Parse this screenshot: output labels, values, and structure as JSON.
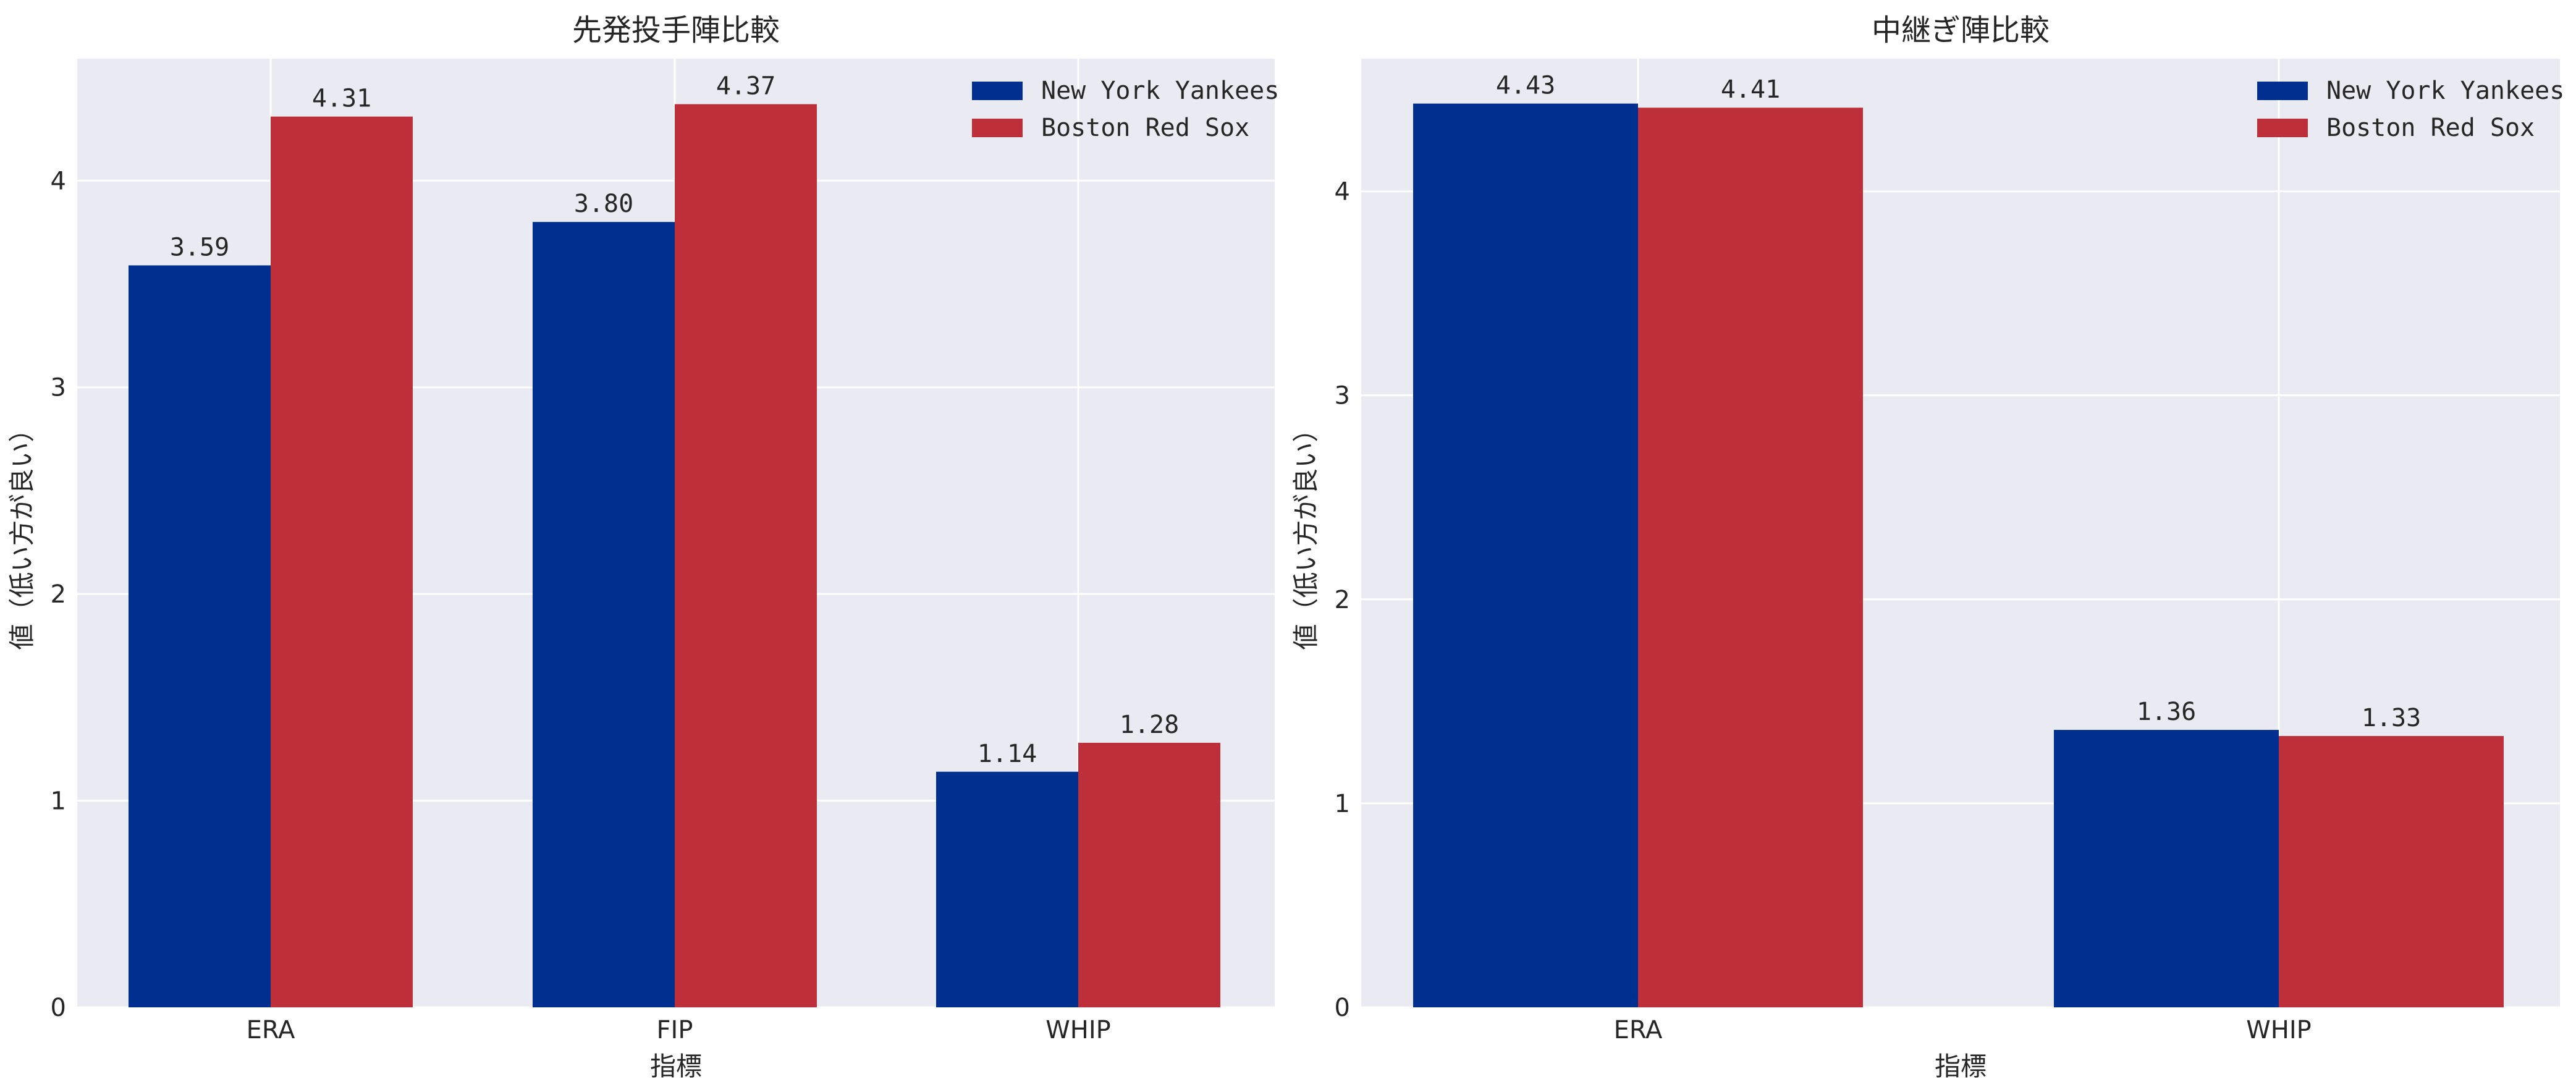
{
  "chart_data": [
    {
      "type": "bar",
      "title": "先発投手陣比較",
      "xlabel": "指標",
      "ylabel": "値（低い方が良い）",
      "categories": [
        "ERA",
        "FIP",
        "WHIP"
      ],
      "series": [
        {
          "name": "New York Yankees",
          "color": "#00308f",
          "values": [
            3.59,
            3.8,
            1.14
          ],
          "labels": [
            "3.59",
            "3.80",
            "1.14"
          ]
        },
        {
          "name": "Boston Red Sox",
          "color": "#bd3039",
          "values": [
            4.31,
            4.37,
            1.28
          ],
          "labels": [
            "4.31",
            "4.37",
            "1.28"
          ]
        }
      ],
      "ylim": [
        0,
        4.59
      ],
      "yticks": [
        0,
        1,
        2,
        3,
        4
      ],
      "grid": true,
      "legend": "top-right"
    },
    {
      "type": "bar",
      "title": "中継ぎ陣比較",
      "xlabel": "指標",
      "ylabel": "値（低い方が良い）",
      "categories": [
        "ERA",
        "WHIP"
      ],
      "series": [
        {
          "name": "New York Yankees",
          "color": "#00308f",
          "values": [
            4.43,
            1.36
          ],
          "labels": [
            "4.43",
            "1.36"
          ]
        },
        {
          "name": "Boston Red Sox",
          "color": "#bd3039",
          "values": [
            4.41,
            1.33
          ],
          "labels": [
            "4.41",
            "1.33"
          ]
        }
      ],
      "ylim": [
        0,
        4.65
      ],
      "yticks": [
        0,
        1,
        2,
        3,
        4
      ],
      "grid": true,
      "legend": "top-right"
    }
  ]
}
